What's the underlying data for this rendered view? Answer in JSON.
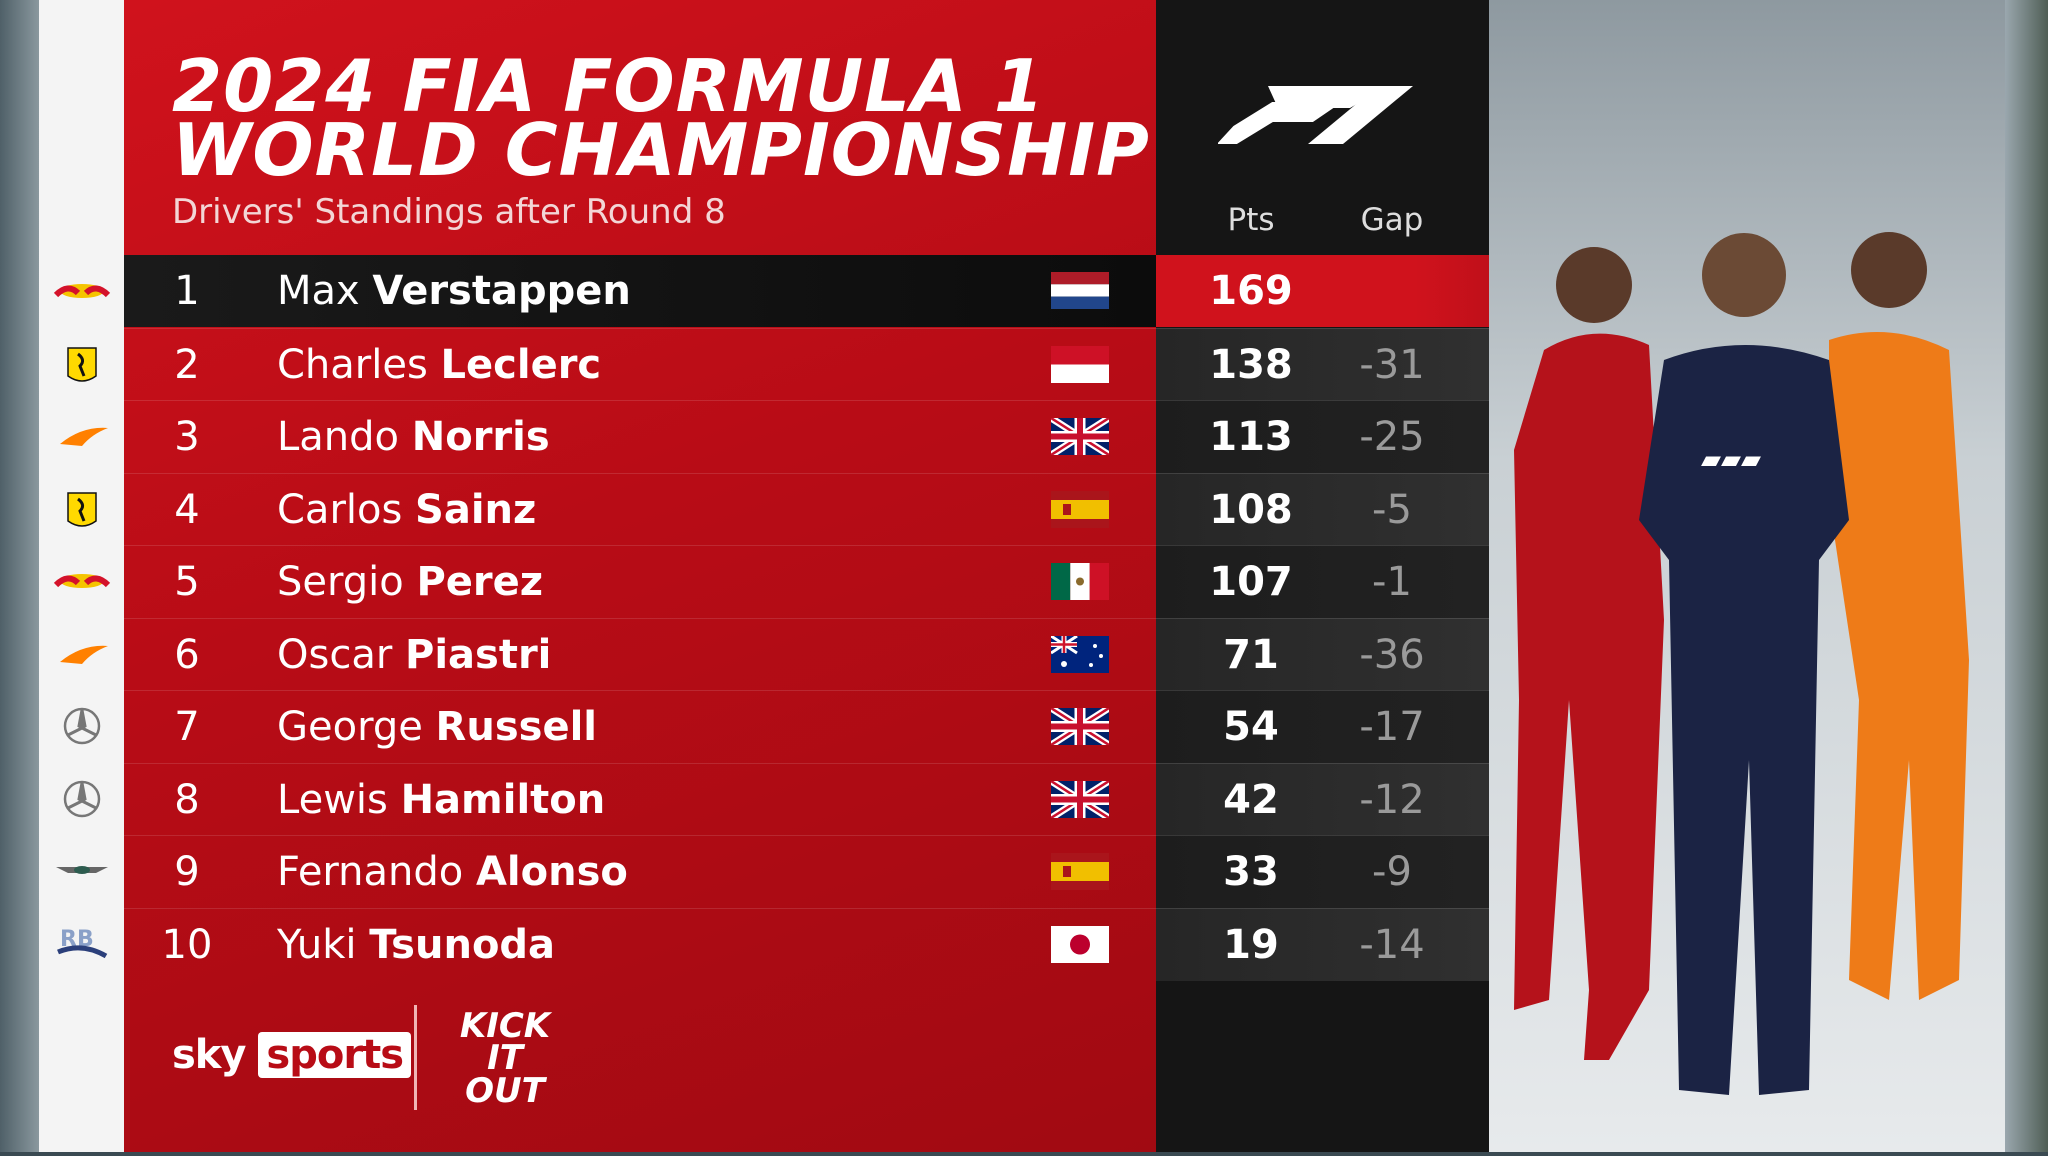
{
  "header": {
    "title_line1": "2024 FIA FORMULA 1",
    "title_line2": "WORLD CHAMPIONSHIP",
    "subtitle": "Drivers' Standings after Round 8"
  },
  "columns": {
    "points": "Pts",
    "gap": "Gap"
  },
  "table": {
    "rows": [
      {
        "position": 1,
        "first_name": "Max",
        "last_name": "Verstappen",
        "points": 169
      },
      {
        "position": 2,
        "first_name": "Charles",
        "last_name": "Leclerc",
        "points": 138,
        "gap": -31
      },
      {
        "position": 3,
        "first_name": "Lando",
        "last_name": "Norris",
        "points": 113,
        "gap": -25
      },
      {
        "position": 4,
        "first_name": "Carlos",
        "last_name": "Sainz",
        "points": 108,
        "gap": -5
      },
      {
        "position": 5,
        "first_name": "Sergio",
        "last_name": "Perez",
        "points": 107,
        "gap": -1
      },
      {
        "position": 6,
        "first_name": "Oscar",
        "last_name": "Piastri",
        "points": 71,
        "gap": -36
      },
      {
        "position": 7,
        "first_name": "George",
        "last_name": "Russell",
        "points": 54,
        "gap": -17
      },
      {
        "position": 8,
        "first_name": "Lewis",
        "last_name": "Hamilton",
        "points": 42,
        "gap": -12
      },
      {
        "position": 9,
        "first_name": "Fernando",
        "last_name": "Alonso",
        "points": 33,
        "gap": -9
      },
      {
        "position": 10,
        "first_name": "Yuki",
        "last_name": "Tsunoda",
        "points": 19,
        "gap": -14
      }
    ]
  },
  "footer": {
    "broadcaster_sky": "sky",
    "broadcaster_sports": "sports",
    "campaign": "KICK IT OUT"
  }
}
